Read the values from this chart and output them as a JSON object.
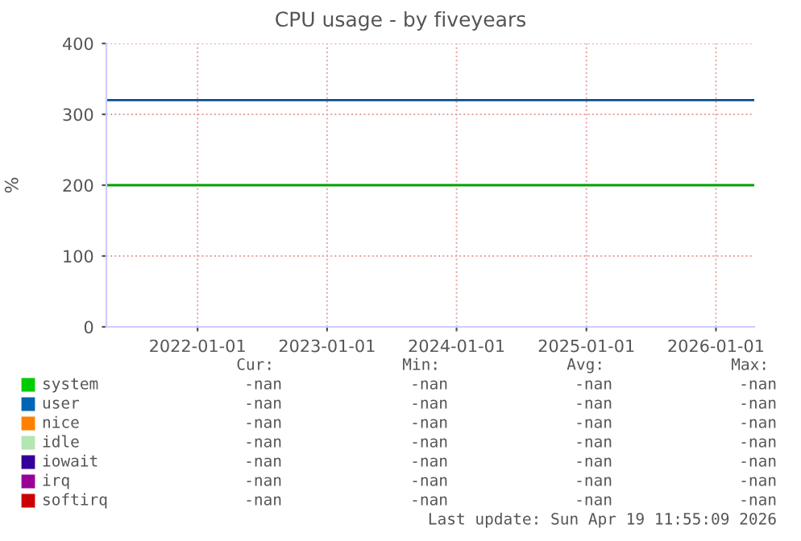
{
  "chart_data": {
    "type": "line",
    "title": "CPU usage - by fiveyears",
    "ylabel": "%",
    "x": [
      "2021-04-19",
      "2026-04-19"
    ],
    "xlim": [
      "2021-04-19",
      "2026-04-19"
    ],
    "xticks": [
      {
        "value": "2022-01-01",
        "label": "2022-01-01"
      },
      {
        "value": "2023-01-01",
        "label": "2023-01-01"
      },
      {
        "value": "2024-01-01",
        "label": "2024-01-01"
      },
      {
        "value": "2025-01-01",
        "label": "2025-01-01"
      },
      {
        "value": "2026-01-01",
        "label": "2026-01-01"
      }
    ],
    "ylim": [
      0,
      400
    ],
    "yticks": [
      0,
      100,
      200,
      300,
      400
    ],
    "grid": true,
    "legend": "bottom",
    "series": [
      {
        "name": "system",
        "color": "#00cc00",
        "values": [
          null,
          null
        ]
      },
      {
        "name": "user",
        "color": "#0066b3",
        "values": [
          null,
          null
        ]
      },
      {
        "name": "nice",
        "color": "#ff8000",
        "values": [
          null,
          null
        ]
      },
      {
        "name": "idle",
        "color": "#b3e6b3",
        "values": [
          null,
          null
        ]
      },
      {
        "name": "iowait",
        "color": "#330099",
        "values": [
          null,
          null
        ]
      },
      {
        "name": "irq",
        "color": "#990099",
        "values": [
          null,
          null
        ]
      },
      {
        "name": "softirq",
        "color": "#cc0000",
        "values": [
          null,
          null
        ]
      },
      {
        "color": "#0b4f8f",
        "values": [
          320,
          320
        ]
      },
      {
        "color": "#00a000",
        "values": [
          200,
          200
        ]
      }
    ],
    "annotations": [
      "Cur:",
      "Min:",
      "Avg:",
      "Max:",
      "-nan",
      "-nan",
      "-nan",
      "-nan",
      "-nan",
      "-nan",
      "-nan",
      "-nan",
      "-nan",
      "-nan",
      "-nan",
      "-nan",
      "-nan",
      "-nan",
      "-nan",
      "-nan",
      "-nan",
      "-nan",
      "-nan",
      "-nan",
      "-nan",
      "-nan",
      "-nan",
      "-nan",
      "-nan",
      "-nan",
      "-nan",
      "-nan",
      "Last update: Sun Apr 19 11:55:09 2026"
    ]
  }
}
